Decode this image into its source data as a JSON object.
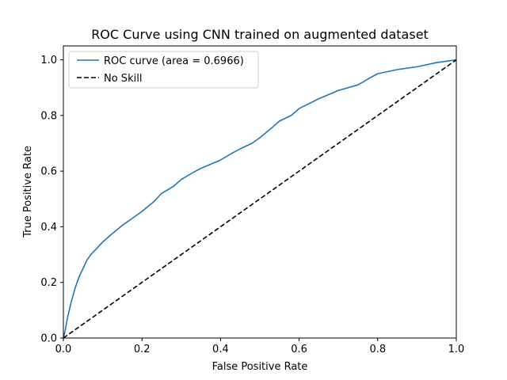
{
  "chart_data": {
    "type": "line",
    "title": "ROC Curve using CNN trained on augmented dataset",
    "xlabel": "False Positive Rate",
    "ylabel": "True Positive Rate",
    "xlim": [
      0.0,
      1.0
    ],
    "ylim": [
      0.0,
      1.05
    ],
    "xticks": [
      0.0,
      0.2,
      0.4,
      0.6,
      0.8,
      1.0
    ],
    "xtick_labels": [
      "0.0",
      "0.2",
      "0.4",
      "0.6",
      "0.8",
      "1.0"
    ],
    "yticks": [
      0.0,
      0.2,
      0.4,
      0.6,
      0.8,
      1.0
    ],
    "ytick_labels": [
      "0.0",
      "0.2",
      "0.4",
      "0.6",
      "0.8",
      "1.0"
    ],
    "grid": false,
    "legend_position": "upper-left",
    "series": [
      {
        "name": "ROC curve (area = 0.6966)",
        "color": "#1f77b4",
        "style": "solid",
        "x": [
          0.0,
          0.005,
          0.01,
          0.02,
          0.03,
          0.04,
          0.05,
          0.06,
          0.07,
          0.08,
          0.1,
          0.12,
          0.15,
          0.18,
          0.2,
          0.23,
          0.25,
          0.28,
          0.3,
          0.33,
          0.35,
          0.4,
          0.43,
          0.45,
          0.48,
          0.5,
          0.53,
          0.55,
          0.58,
          0.6,
          0.65,
          0.7,
          0.75,
          0.78,
          0.8,
          0.85,
          0.9,
          0.95,
          1.0
        ],
        "y": [
          0.0,
          0.03,
          0.07,
          0.13,
          0.18,
          0.22,
          0.25,
          0.28,
          0.3,
          0.315,
          0.345,
          0.37,
          0.405,
          0.435,
          0.455,
          0.49,
          0.52,
          0.545,
          0.57,
          0.595,
          0.61,
          0.64,
          0.665,
          0.68,
          0.7,
          0.72,
          0.755,
          0.78,
          0.8,
          0.825,
          0.86,
          0.89,
          0.91,
          0.935,
          0.95,
          0.965,
          0.975,
          0.99,
          1.0
        ]
      },
      {
        "name": "No Skill",
        "color": "#000000",
        "style": "dashed",
        "x": [
          0.0,
          1.0
        ],
        "y": [
          0.0,
          1.0
        ]
      }
    ]
  }
}
